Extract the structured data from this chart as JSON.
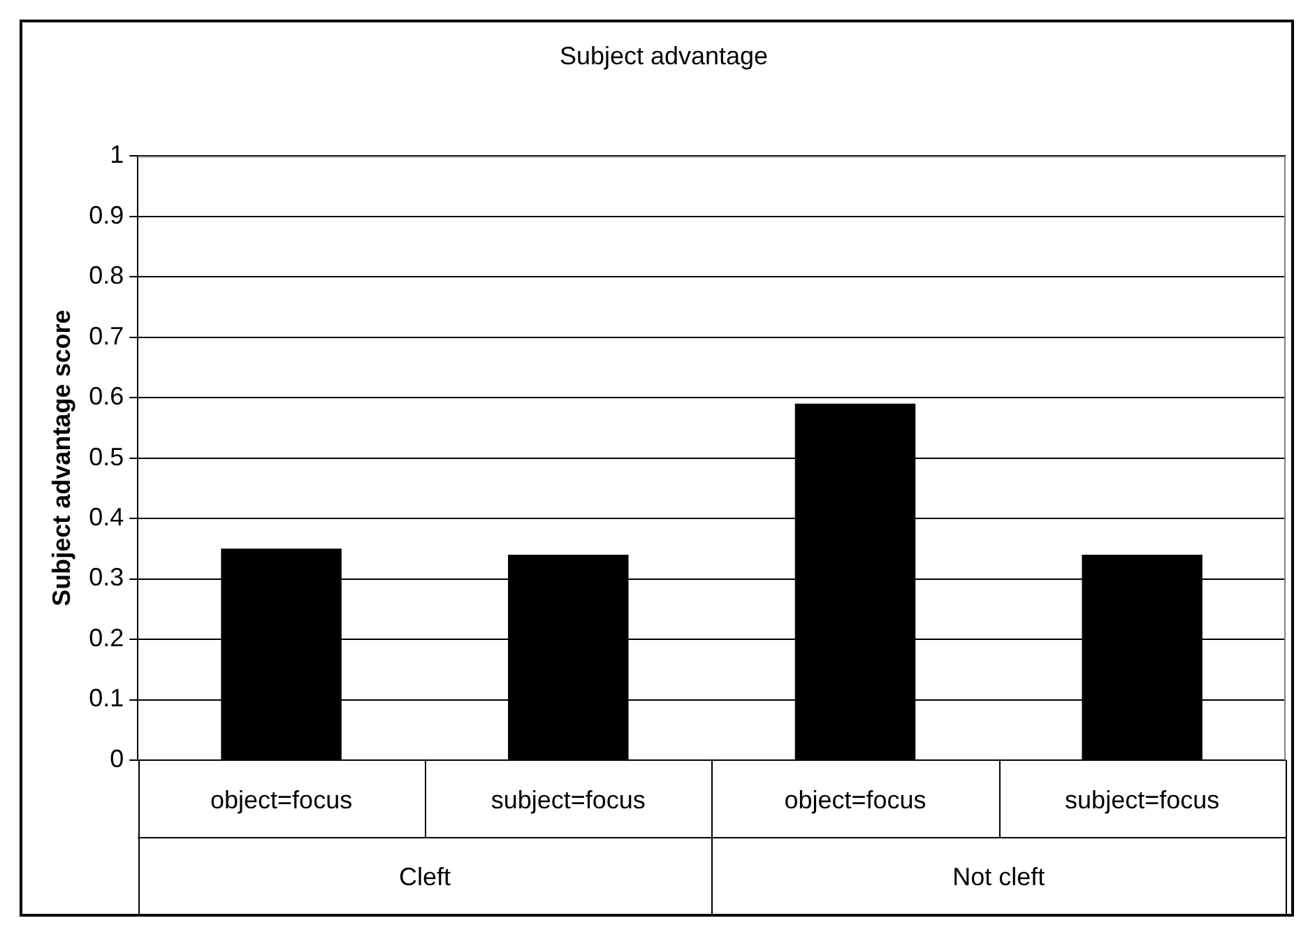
{
  "chart_data": {
    "type": "bar",
    "title": "Subject advantage",
    "ylabel": "Subject advantage score",
    "categories": [
      "object=focus",
      "subject=focus",
      "object=focus",
      "subject=focus"
    ],
    "values": [
      0.35,
      0.34,
      0.59,
      0.34
    ],
    "color": "#000000",
    "ylim": [
      0,
      1
    ],
    "yticks": [
      0,
      0.1,
      0.2,
      0.3,
      0.4,
      0.5,
      0.6,
      0.7,
      0.8,
      0.9,
      1
    ],
    "grid": "y",
    "legend": false,
    "annotations": [
      "Cleft",
      "Not cleft"
    ]
  }
}
